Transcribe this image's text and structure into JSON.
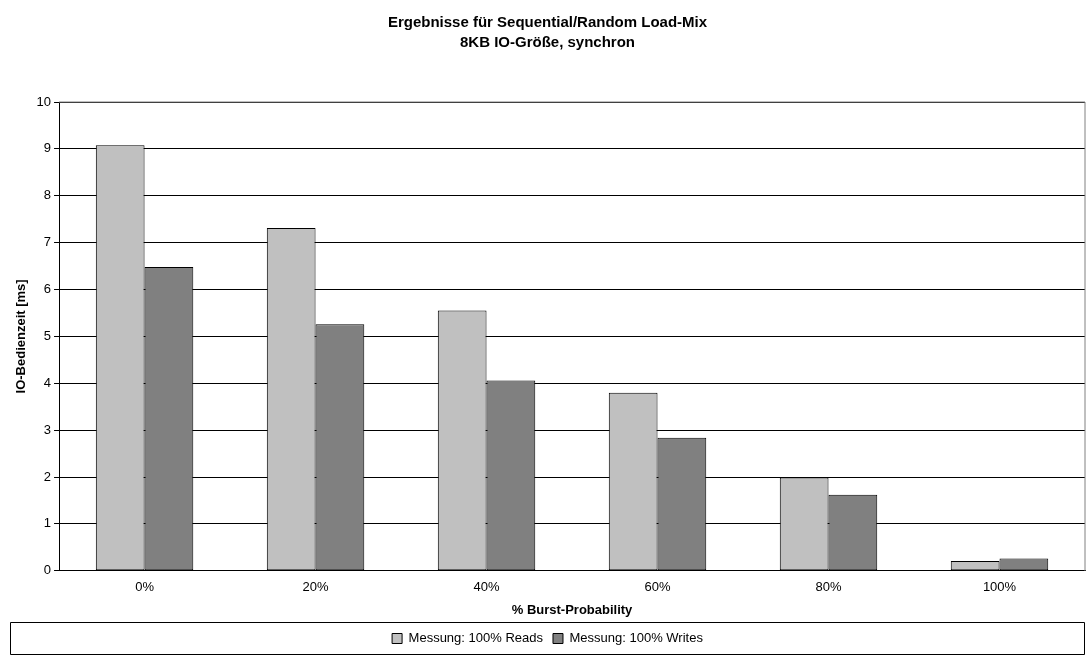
{
  "chart_data": {
    "type": "bar",
    "title": "Ergebnisse für Sequential/Random Load-Mix",
    "subtitle": "8KB IO-Größe, synchron",
    "xlabel": "% Burst-Probability",
    "ylabel": "IO-Bedienzeit [ms]",
    "categories": [
      "0%",
      "20%",
      "40%",
      "60%",
      "80%",
      "100%"
    ],
    "series": [
      {
        "name": "Messung: 100% Reads",
        "color": "#c0c0c0",
        "values": [
          9.08,
          7.31,
          5.55,
          3.8,
          1.99,
          0.21
        ]
      },
      {
        "name": "Messung: 100% Writes",
        "color": "#808080",
        "values": [
          6.48,
          5.26,
          4.06,
          2.84,
          1.62,
          0.26
        ]
      }
    ],
    "ylim": [
      0,
      10
    ],
    "yticks": [
      0,
      1,
      2,
      3,
      4,
      5,
      6,
      7,
      8,
      9,
      10
    ],
    "grid": "y",
    "legend": "bottom"
  }
}
